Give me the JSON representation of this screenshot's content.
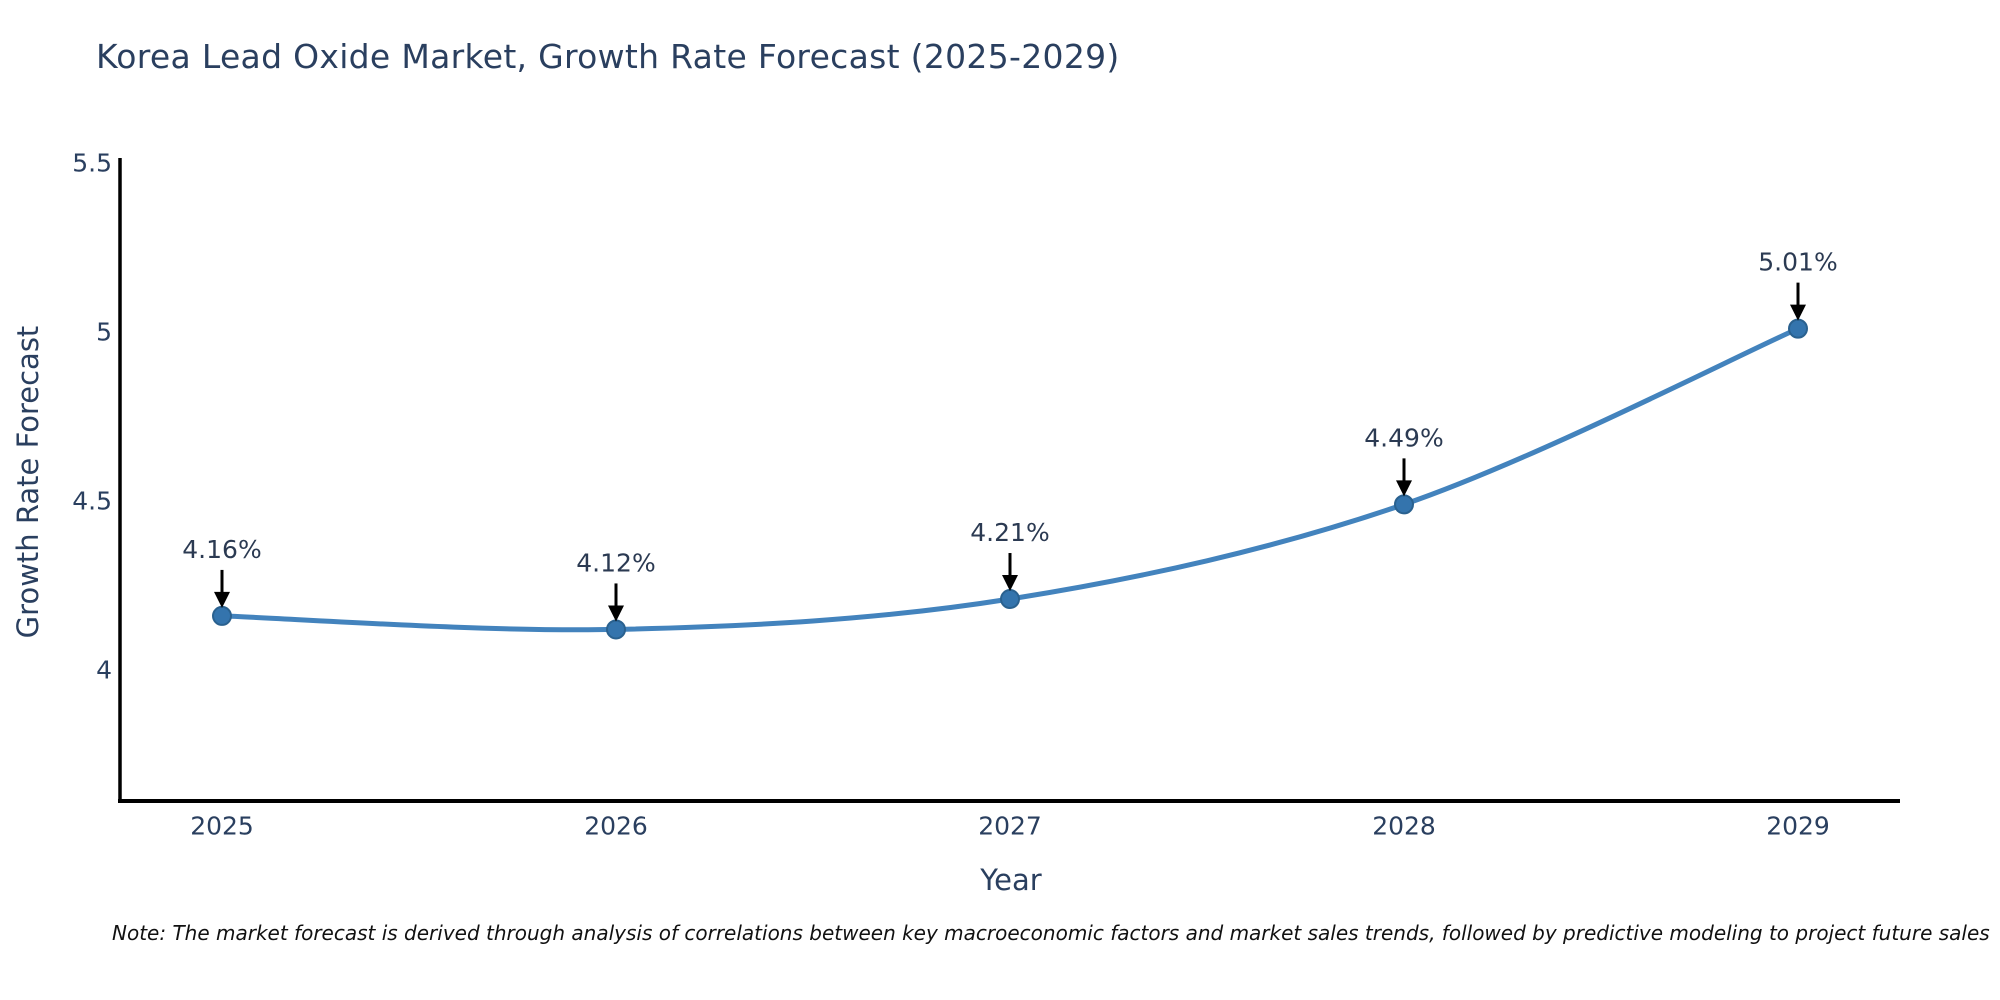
{
  "page": {
    "background": "#ffffff"
  },
  "note": "Note: The market forecast is derived through analysis of correlations between key macroeconomic factors and market sales trends, followed by predictive modeling to project future sales",
  "chart_data": {
    "type": "line",
    "line_shape": "spline",
    "title": "Korea Lead Oxide Market, Growth Rate Forecast (2025-2029)",
    "xlabel": "Year",
    "ylabel": "Growth Rate Forecast",
    "categories": [
      "2025",
      "2026",
      "2027",
      "2028",
      "2029"
    ],
    "values": [
      4.16,
      4.12,
      4.21,
      4.49,
      5.01
    ],
    "data_labels": [
      "4.16%",
      "4.12%",
      "4.21%",
      "4.49%",
      "5.01%"
    ],
    "annotation_style": "value label above each point with downward black arrow",
    "y_ticks": [
      {
        "label": "4",
        "value": 4.0
      },
      {
        "label": "4.5",
        "value": 4.5
      },
      {
        "label": "5",
        "value": 5.0
      },
      {
        "label": "5.5",
        "value": 5.5
      }
    ],
    "ylim": [
      3.61,
      5.51
    ],
    "grid": false,
    "legend": false,
    "colors": {
      "line": "#4383bd",
      "marker_fill": "#3474ad",
      "marker_edge": "#2a618f",
      "axis_line": "#000000",
      "chart_text": "#2a3f5f",
      "annotation_text": "#2b3a52",
      "annotation_arrow": "#000000",
      "note_text": "#111111"
    }
  }
}
